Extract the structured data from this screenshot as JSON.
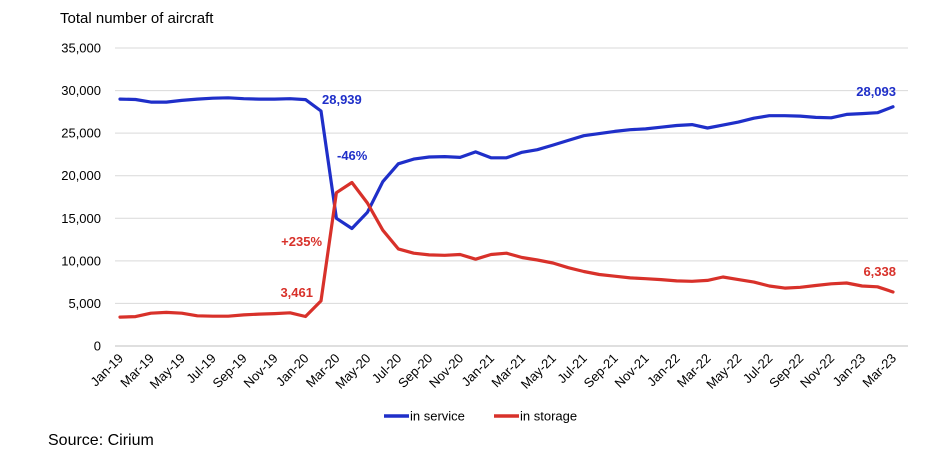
{
  "source": "Source: Cirium",
  "chart_data": {
    "type": "line",
    "ylabel": "Total number of aircraft",
    "ylim": [
      0,
      35000
    ],
    "yticks": [
      0,
      5000,
      10000,
      15000,
      20000,
      25000,
      30000,
      35000
    ],
    "ytick_labels": [
      "0",
      "5,000",
      "10,000",
      "15,000",
      "20,000",
      "25,000",
      "30,000",
      "35,000"
    ],
    "grid": "horizontal",
    "legend_position": "bottom",
    "xtick_labels": [
      "Jan-19",
      "Mar-19",
      "May-19",
      "Jul-19",
      "Sep-19",
      "Nov-19",
      "Jan-20",
      "Mar-20",
      "May-20",
      "Jul-20",
      "Sep-20",
      "Nov-20",
      "Jan-21",
      "Mar-21",
      "May-21",
      "Jul-21",
      "Sep-21",
      "Nov-21",
      "Jan-22",
      "Mar-22",
      "May-22",
      "Jul-22",
      "Sep-22",
      "Nov-22",
      "Jan-23",
      "Mar-23"
    ],
    "x": [
      "Jan-19",
      "Feb-19",
      "Mar-19",
      "Apr-19",
      "May-19",
      "Jun-19",
      "Jul-19",
      "Aug-19",
      "Sep-19",
      "Oct-19",
      "Nov-19",
      "Dec-19",
      "Jan-20",
      "Feb-20",
      "Mar-20",
      "Apr-20",
      "May-20",
      "Jun-20",
      "Jul-20",
      "Aug-20",
      "Sep-20",
      "Oct-20",
      "Nov-20",
      "Dec-20",
      "Jan-21",
      "Feb-21",
      "Mar-21",
      "Apr-21",
      "May-21",
      "Jun-21",
      "Jul-21",
      "Aug-21",
      "Sep-21",
      "Oct-21",
      "Nov-21",
      "Dec-21",
      "Jan-22",
      "Feb-22",
      "Mar-22",
      "Apr-22",
      "May-22",
      "Jun-22",
      "Jul-22",
      "Aug-22",
      "Sep-22",
      "Oct-22",
      "Nov-22",
      "Dec-22",
      "Jan-23",
      "Feb-23",
      "Mar-23"
    ],
    "series": [
      {
        "name": "in service",
        "color": "#1f2fc9",
        "values": [
          29000,
          28950,
          28650,
          28650,
          28850,
          29000,
          29100,
          29150,
          29050,
          29000,
          29000,
          29050,
          28939,
          27600,
          15000,
          13800,
          15700,
          19300,
          21400,
          21950,
          22200,
          22250,
          22150,
          22800,
          22100,
          22100,
          22750,
          23050,
          23600,
          24150,
          24700,
          24950,
          25200,
          25400,
          25500,
          25700,
          25900,
          26000,
          25600,
          25950,
          26300,
          26750,
          27050,
          27050,
          27000,
          26850,
          26800,
          27200,
          27300,
          27400,
          28093
        ]
      },
      {
        "name": "in storage",
        "color": "#d8312a",
        "values": [
          3400,
          3450,
          3850,
          3950,
          3850,
          3550,
          3500,
          3500,
          3650,
          3750,
          3800,
          3900,
          3461,
          5300,
          18000,
          19200,
          16800,
          13600,
          11400,
          10900,
          10700,
          10650,
          10750,
          10200,
          10750,
          10900,
          10400,
          10100,
          9750,
          9200,
          8750,
          8400,
          8200,
          8000,
          7900,
          7800,
          7650,
          7600,
          7700,
          8100,
          7800,
          7500,
          7050,
          6800,
          6900,
          7100,
          7300,
          7400,
          7050,
          6950,
          6338
        ]
      }
    ],
    "annotations": [
      {
        "text": "28,939",
        "series": 0
      },
      {
        "text": "-46%",
        "series": 0
      },
      {
        "text": "28,093",
        "series": 0
      },
      {
        "text": "+235%",
        "series": 1
      },
      {
        "text": "3,461",
        "series": 1
      },
      {
        "text": "6,338",
        "series": 1
      }
    ]
  }
}
